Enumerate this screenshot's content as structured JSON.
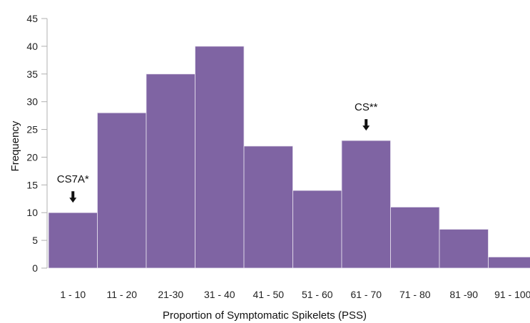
{
  "chart_data": {
    "type": "bar",
    "categories": [
      "1 - 10",
      "11 - 20",
      "21-30",
      "31 - 40",
      "41 - 50",
      "51 - 60",
      "61 - 70",
      "71 - 80",
      "81 -90",
      "91 - 100"
    ],
    "values": [
      10,
      28,
      35,
      40,
      22,
      14,
      23,
      11,
      7,
      2
    ],
    "xlabel": "Proportion of Symptomatic Spikelets (PSS)",
    "ylabel": "Frequency",
    "ylim": [
      0,
      45
    ],
    "yticks": [
      0,
      5,
      10,
      15,
      20,
      25,
      30,
      35,
      40,
      45
    ],
    "grid": false,
    "bar_color": "#7f64a3",
    "annotations": [
      {
        "text": "CS7A*",
        "category_index": 0
      },
      {
        "text": "CS**",
        "category_index": 6
      }
    ]
  }
}
